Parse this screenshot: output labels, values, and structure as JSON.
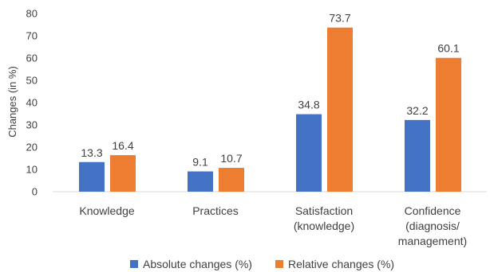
{
  "chart_data": {
    "type": "bar",
    "title": "",
    "xlabel": "",
    "ylabel": "Changes (in %)",
    "ylim": [
      0,
      80
    ],
    "y_ticks": [
      0,
      10,
      20,
      30,
      40,
      50,
      60,
      70,
      80
    ],
    "grid": false,
    "legend_position": "bottom",
    "categories": [
      [
        "Knowledge"
      ],
      [
        "Practices"
      ],
      [
        "Satisfaction",
        "(knowledge)"
      ],
      [
        "Confidence",
        "(diagnosis/",
        "management)"
      ]
    ],
    "series": [
      {
        "name": "Absolute changes (%)",
        "color": "#4472c4",
        "values": [
          13.3,
          9.1,
          34.8,
          32.2
        ],
        "labels": [
          "13.3",
          "9.1",
          "34.8",
          "32.2"
        ]
      },
      {
        "name": "Relative changes (%)",
        "color": "#ed7d31",
        "values": [
          16.4,
          10.7,
          73.7,
          60.1
        ],
        "labels": [
          "16.4",
          "10.7",
          "73.7",
          "60.1"
        ]
      }
    ]
  }
}
